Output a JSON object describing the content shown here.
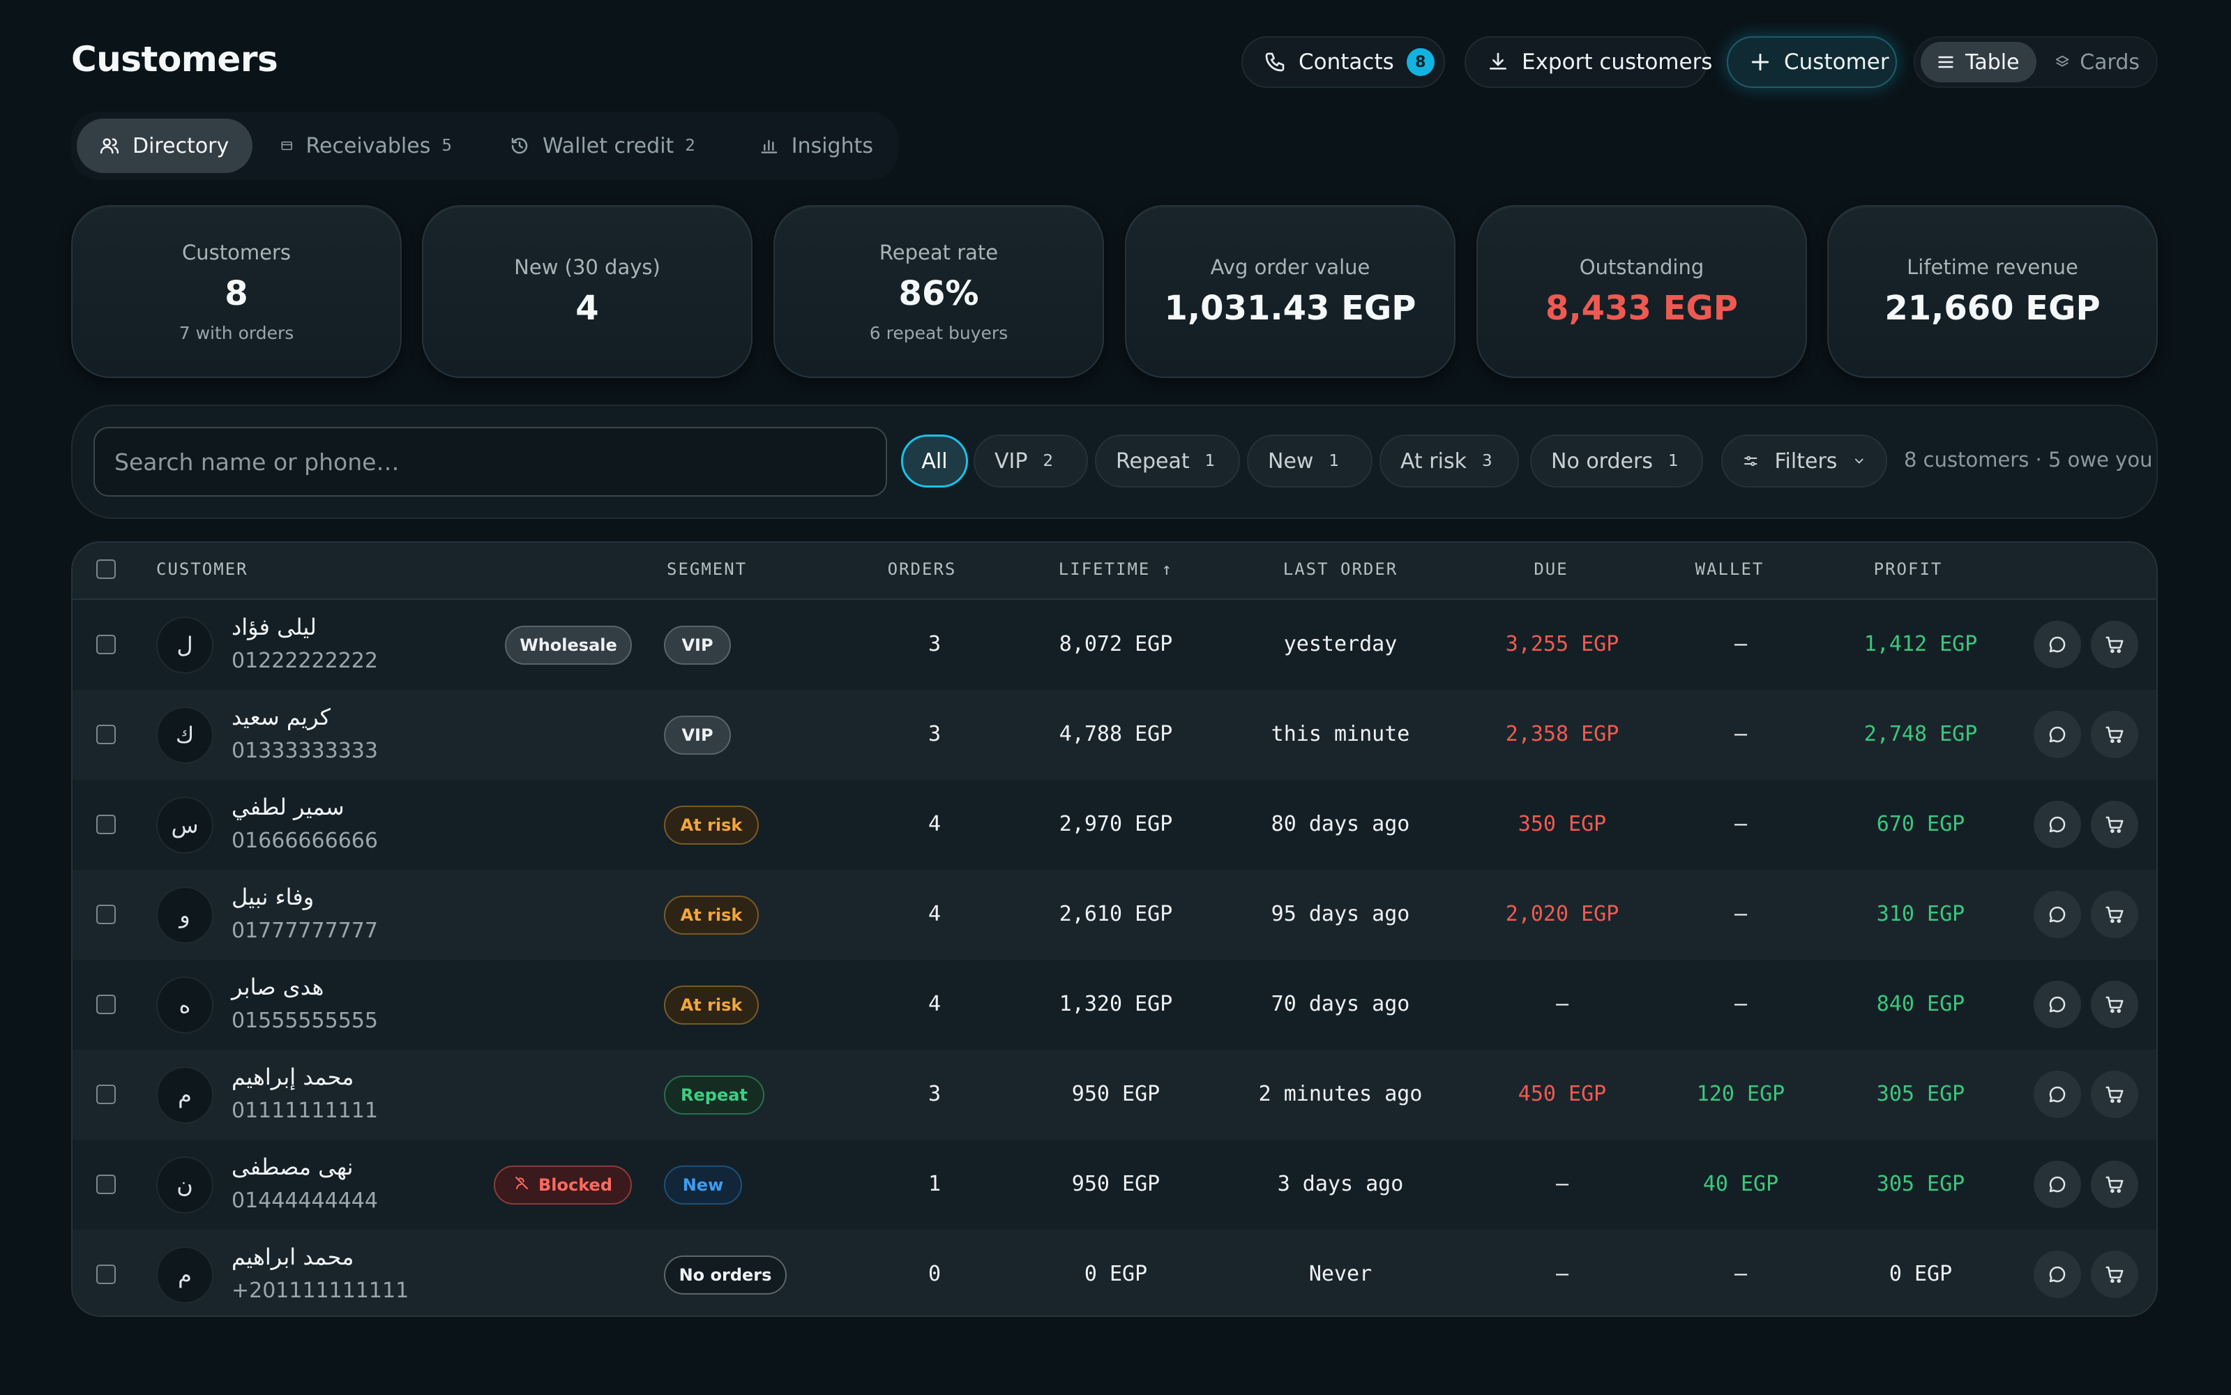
{
  "page": {
    "title": "Customers"
  },
  "header": {
    "contacts_label": "Contacts",
    "contacts_count": "8",
    "export_label": "Export customers",
    "add_customer_label": "Customer",
    "view_table_label": "Table",
    "view_cards_label": "Cards",
    "active_view": "Table"
  },
  "tabs": [
    {
      "label": "Directory",
      "count": "",
      "icon": "users-icon",
      "active": true
    },
    {
      "label": "Receivables",
      "count": "5",
      "icon": "card-icon"
    },
    {
      "label": "Wallet credit",
      "count": "2",
      "icon": "history-icon"
    },
    {
      "label": "Insights",
      "count": "",
      "icon": "bar-chart-icon"
    }
  ],
  "kpis": [
    {
      "label": "Customers",
      "value": "8",
      "sub": "7 with orders"
    },
    {
      "label": "New (30 days)",
      "value": "4",
      "sub": ""
    },
    {
      "label": "Repeat rate",
      "value": "86%",
      "sub": "6 repeat buyers"
    },
    {
      "label": "Avg order value",
      "value": "1,031.43 EGP",
      "sub": ""
    },
    {
      "label": "Outstanding",
      "value": "8,433 EGP",
      "sub": "",
      "color": "#ee5a52"
    },
    {
      "label": "Lifetime revenue",
      "value": "21,660 EGP",
      "sub": ""
    }
  ],
  "filters": {
    "search_placeholder": "Search name or phone…",
    "search_value": "",
    "chips": [
      {
        "label": "All",
        "count": "",
        "active": true
      },
      {
        "label": "VIP",
        "count": "2"
      },
      {
        "label": "Repeat",
        "count": "1"
      },
      {
        "label": "New",
        "count": "1"
      },
      {
        "label": "At risk",
        "count": "3"
      },
      {
        "label": "No orders",
        "count": "1"
      }
    ],
    "filters_label": "Filters",
    "summary": "8 customers · 5 owe you"
  },
  "table": {
    "columns": {
      "customer": "CUSTOMER",
      "segment": "SEGMENT",
      "orders": "ORDERS",
      "lifetime": "LIFETIME",
      "lifetime_sort": "↑",
      "last_order": "LAST ORDER",
      "due": "DUE",
      "wallet": "WALLET",
      "profit": "PROFIT"
    },
    "rows": [
      {
        "initial": "ل",
        "name": "ليلى فؤاد",
        "phone": "01222222222",
        "tag": "Wholesale",
        "segment": "VIP",
        "orders": "3",
        "lifetime": "8,072 EGP",
        "last_order": "yesterday",
        "due": "3,255 EGP",
        "wallet": "–",
        "profit": "1,412 EGP"
      },
      {
        "initial": "ك",
        "name": "كريم سعيد",
        "phone": "01333333333",
        "tag": "",
        "segment": "VIP",
        "orders": "3",
        "lifetime": "4,788 EGP",
        "last_order": "this minute",
        "due": "2,358 EGP",
        "wallet": "–",
        "profit": "2,748 EGP"
      },
      {
        "initial": "س",
        "name": "سمير لطفي",
        "phone": "01666666666",
        "tag": "",
        "segment": "At risk",
        "orders": "4",
        "lifetime": "2,970 EGP",
        "last_order": "80 days ago",
        "due": "350 EGP",
        "wallet": "–",
        "profit": "670 EGP"
      },
      {
        "initial": "و",
        "name": "وفاء نبيل",
        "phone": "01777777777",
        "tag": "",
        "segment": "At risk",
        "orders": "4",
        "lifetime": "2,610 EGP",
        "last_order": "95 days ago",
        "due": "2,020 EGP",
        "wallet": "–",
        "profit": "310 EGP"
      },
      {
        "initial": "ه",
        "name": "هدى صابر",
        "phone": "01555555555",
        "tag": "",
        "segment": "At risk",
        "orders": "4",
        "lifetime": "1,320 EGP",
        "last_order": "70 days ago",
        "due": "–",
        "wallet": "–",
        "profit": "840 EGP"
      },
      {
        "initial": "م",
        "name": "محمد إبراهيم",
        "phone": "01111111111",
        "tag": "",
        "segment": "Repeat",
        "orders": "3",
        "lifetime": "950 EGP",
        "last_order": "2 minutes ago",
        "due": "450 EGP",
        "wallet": "120 EGP",
        "profit": "305 EGP"
      },
      {
        "initial": "ن",
        "name": "نهى مصطفى",
        "phone": "01444444444",
        "tag": "Blocked",
        "segment": "New",
        "orders": "1",
        "lifetime": "950 EGP",
        "last_order": "3 days ago",
        "due": "–",
        "wallet": "40 EGP",
        "profit": "305 EGP"
      },
      {
        "initial": "م",
        "name": "محمد ابراهيم",
        "phone": "+201111111111",
        "tag": "",
        "segment": "No orders",
        "orders": "0",
        "lifetime": "0 EGP",
        "last_order": "Never",
        "due": "–",
        "wallet": "–",
        "profit": "0 EGP"
      }
    ]
  },
  "colors": {
    "background": "#0a1318",
    "accent": "#12b3e0",
    "negative": "#ee5a52",
    "positive": "#3cc77d",
    "warning": "#f5a63a",
    "info": "#3d9df2"
  }
}
